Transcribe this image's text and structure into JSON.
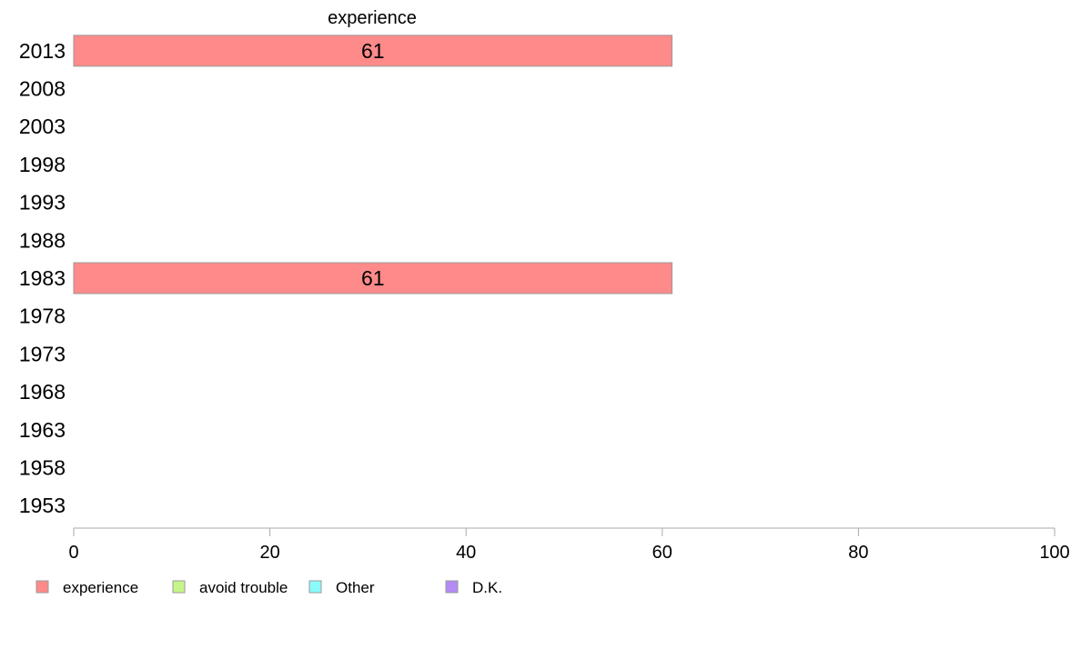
{
  "chart_data": {
    "type": "bar",
    "orientation": "horizontal",
    "stacked": true,
    "categories": [
      "2013",
      "2008",
      "2003",
      "1998",
      "1993",
      "1988",
      "1983",
      "1978",
      "1973",
      "1968",
      "1963",
      "1958",
      "1953"
    ],
    "series": [
      {
        "name": "experience",
        "color": "#ff8a8a",
        "values": [
          61,
          null,
          null,
          null,
          null,
          null,
          61,
          null,
          null,
          null,
          null,
          null,
          null
        ]
      },
      {
        "name": "avoid trouble",
        "color": "#c8f58a",
        "values": [
          null,
          null,
          null,
          null,
          null,
          null,
          null,
          null,
          null,
          null,
          null,
          null,
          null
        ]
      },
      {
        "name": "Other",
        "color": "#8afafa",
        "values": [
          null,
          null,
          null,
          null,
          null,
          null,
          null,
          null,
          null,
          null,
          null,
          null,
          null
        ]
      },
      {
        "name": "D.K.",
        "color": "#b48af5",
        "values": [
          null,
          null,
          null,
          null,
          null,
          null,
          null,
          null,
          null,
          null,
          null,
          null,
          null
        ]
      }
    ],
    "data_labels": [
      "61",
      "",
      "",
      "",
      "",
      "",
      "61",
      "",
      "",
      "",
      "",
      "",
      ""
    ],
    "annotations": [
      {
        "text": "experience",
        "series": "experience"
      }
    ],
    "xlim": [
      0,
      100
    ],
    "xticks": [
      0,
      20,
      40,
      60,
      80,
      100
    ],
    "title": "",
    "xlabel": "",
    "ylabel": "",
    "grid": false,
    "legend_position": "bottom-left"
  }
}
